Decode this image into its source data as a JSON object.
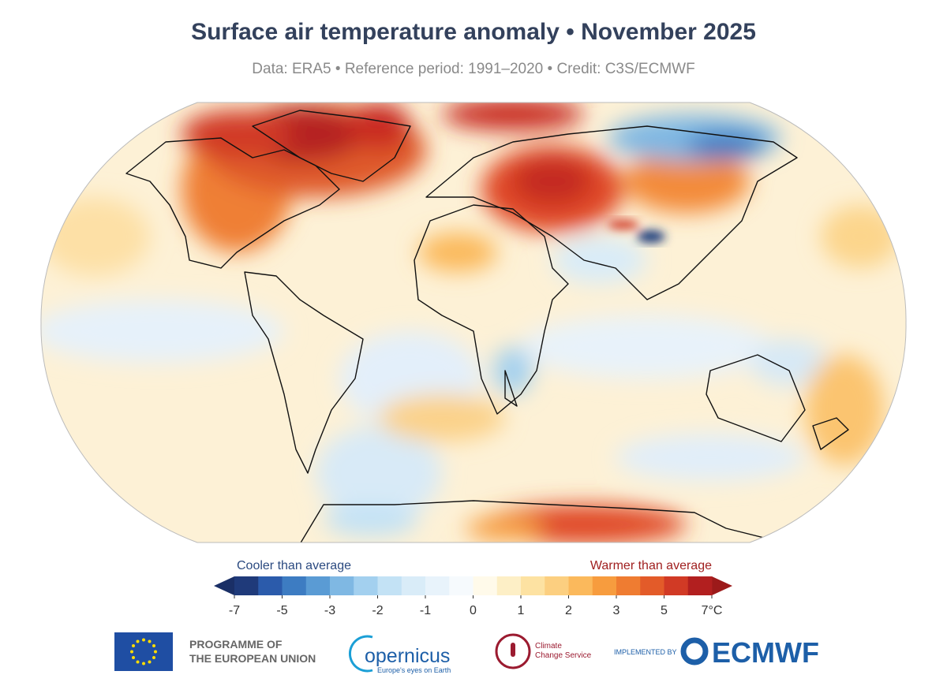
{
  "title": "Surface air temperature anomaly • November 2025",
  "subtitle": "Data: ERA5 • Reference period: 1991–2020 • Credit: C3S/ECMWF",
  "colorbar": {
    "low_label": "Cooler than average",
    "high_label": "Warmer than average",
    "levels": [
      -7,
      -6,
      -5,
      -4,
      -3,
      -2.5,
      -2,
      -1.5,
      -1,
      -0.5,
      0,
      0.5,
      1,
      1.5,
      2,
      2.5,
      3,
      4,
      5,
      6,
      7
    ],
    "colors": [
      "#1f3a7a",
      "#2b5bab",
      "#3d7cc2",
      "#5a9bd4",
      "#7fb8e3",
      "#a3d0ef",
      "#c3e2f5",
      "#d9ecf8",
      "#e8f3fb",
      "#f6fafd",
      "#fffaea",
      "#fdefc6",
      "#fde2a2",
      "#fccf80",
      "#fbb95c",
      "#f79c3e",
      "#ef7c31",
      "#e35b29",
      "#d13a25",
      "#b21f1f"
    ],
    "under_color": "#1a2f66",
    "over_color": "#9c1a1a",
    "ticks": [
      -7,
      -5,
      -3,
      -2,
      -1,
      0,
      1,
      2,
      3,
      5,
      {
        "value": 7,
        "label": "7°C"
      }
    ]
  },
  "footer": {
    "eu_line1": "PROGRAMME OF",
    "eu_line2": "THE EUROPEAN UNION",
    "copernicus": "opernicus",
    "copernicus_tagline": "Europe's eyes on Earth",
    "c3s_line1": "Climate",
    "c3s_line2": "Change Service",
    "implemented_by": "IMPLEMENTED BY",
    "ecmwf": "ECMWF"
  }
}
